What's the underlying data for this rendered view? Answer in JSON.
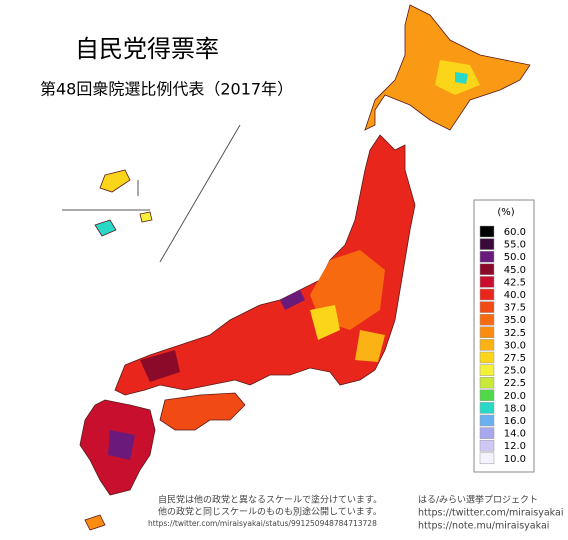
{
  "header": {
    "title": "自民党得票率",
    "subtitle": "第48回衆院選比例代表（2017年）"
  },
  "legend": {
    "unit": "(%)",
    "items": [
      {
        "label": "60.0",
        "color": "#000000"
      },
      {
        "label": "55.0",
        "color": "#3a0a3a"
      },
      {
        "label": "50.0",
        "color": "#6a1a7a"
      },
      {
        "label": "45.0",
        "color": "#8b0a2a"
      },
      {
        "label": "42.5",
        "color": "#c8102e"
      },
      {
        "label": "40.0",
        "color": "#e8261c"
      },
      {
        "label": "37.5",
        "color": "#f24a14"
      },
      {
        "label": "35.0",
        "color": "#f76a10"
      },
      {
        "label": "32.5",
        "color": "#fa8c12"
      },
      {
        "label": "30.0",
        "color": "#fbb214"
      },
      {
        "label": "27.5",
        "color": "#fad51a"
      },
      {
        "label": "25.0",
        "color": "#f5f03a"
      },
      {
        "label": "22.5",
        "color": "#c8e83c"
      },
      {
        "label": "20.0",
        "color": "#4ed84a"
      },
      {
        "label": "18.0",
        "color": "#2ad8c8"
      },
      {
        "label": "16.0",
        "color": "#6ab0f0"
      },
      {
        "label": "14.0",
        "color": "#a8a8f0"
      },
      {
        "label": "12.0",
        "color": "#d0c8f4"
      },
      {
        "label": "10.0",
        "color": "#f4f2fc"
      }
    ]
  },
  "notes": [
    "自民党は他の政党と異なるスケールで塗分けています。",
    "他の政党と同じスケールのものも別途公開しています。",
    "https://twitter.com/miraisyakai/status/991250948784713728"
  ],
  "credit": [
    "はる/みらい選挙プロジェクト",
    "https://twitter.com/miraisyakai",
    "https://note.mu/miraisyakai"
  ]
}
